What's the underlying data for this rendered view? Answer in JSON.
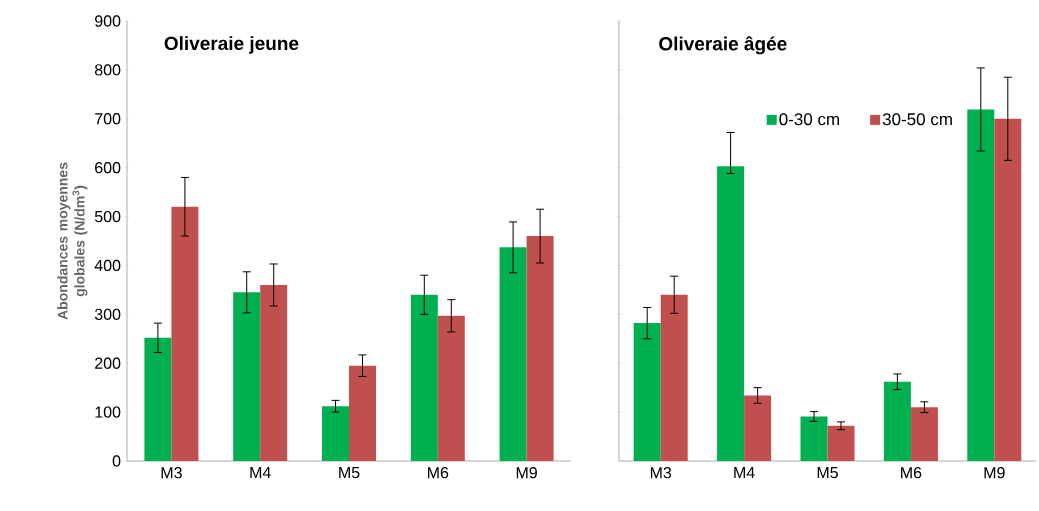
{
  "chart_data": [
    {
      "type": "bar",
      "title": "Oliveraie jeune",
      "ylabel": "Abondances moyennes globales (N/dm$^{3}$)",
      "categories": [
        "M3",
        "M4",
        "M5",
        "M6",
        "M9"
      ],
      "series": [
        {
          "color": "#00b050",
          "values": [
            252,
            345,
            112,
            340,
            437
          ],
          "errors": [
            30,
            42,
            12,
            40,
            52
          ]
        },
        {
          "color": "#c0504d",
          "values": [
            520,
            360,
            195,
            297,
            460
          ],
          "errors": [
            60,
            43,
            22,
            33,
            55
          ]
        }
      ],
      "ylim": [
        0,
        900
      ],
      "yticks": [
        0,
        100,
        200,
        300,
        400,
        500,
        600,
        700,
        800,
        900
      ],
      "grid": false,
      "legend": false
    },
    {
      "type": "bar",
      "title": "Oliveraie âgée",
      "categories": [
        "M3",
        "M4",
        "M5",
        "M6",
        "M9"
      ],
      "series": [
        {
          "name": "0-30 cm",
          "color": "#00b050",
          "values": [
            282,
            603,
            91,
            162,
            719
          ],
          "errors": [
            32,
            [
              588,
              672
            ],
            10,
            16,
            85
          ]
        },
        {
          "name": "30-50 cm",
          "color": "#c0504d",
          "values": [
            340,
            134,
            72,
            110,
            700
          ],
          "errors": [
            38,
            16,
            8,
            11,
            85
          ]
        }
      ],
      "ylim": [
        0,
        900
      ],
      "yticks": [
        0,
        100,
        200,
        300,
        400,
        500,
        600,
        700,
        800,
        900
      ],
      "tick_labels": "x",
      "grid": false,
      "legend": "top"
    }
  ]
}
